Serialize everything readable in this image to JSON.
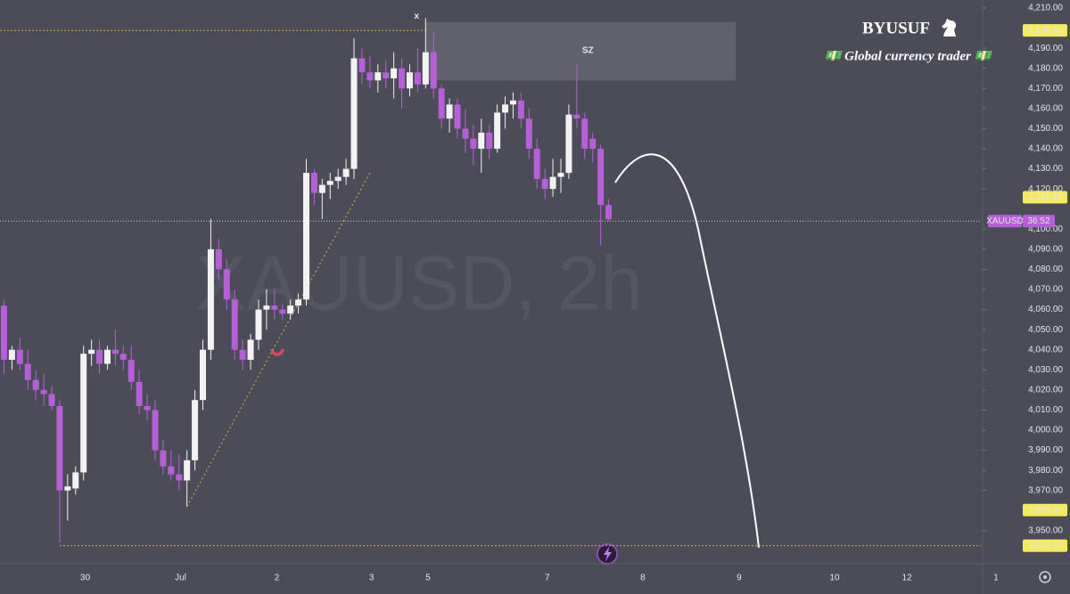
{
  "chart_data": {
    "type": "candlestick",
    "watermark": "XAUUSD, 2h",
    "brand": "BYUSUF",
    "tagline": "💵 Global currency trader 💵",
    "zone_label": "SZ",
    "marker": "x",
    "up_color": "#f2f2f2",
    "down_color": "#b65fd8",
    "open": [
      4062,
      4035,
      4040,
      4033,
      4025,
      4020,
      4018,
      4012,
      3970,
      3971,
      3979,
      4038,
      4040,
      4033,
      4040,
      4038,
      4035,
      4024,
      4012,
      4010,
      3990,
      3982,
      3978,
      3975,
      3985,
      4015,
      4040,
      4090,
      4080,
      4065,
      4040,
      4035,
      4045,
      4060,
      4062,
      4060,
      4058,
      4062,
      4065,
      4128,
      4118,
      4122,
      4124,
      4126,
      4130,
      4185,
      4178,
      4174,
      4178,
      4175,
      4180,
      4170,
      4178,
      4172,
      4188,
      4170,
      4155,
      4162,
      4150,
      4145,
      4140,
      4148,
      4140,
      4158,
      4162,
      4164,
      4155,
      4140,
      4125,
      4120,
      4126,
      4128,
      4157,
      4155,
      4145,
      4140,
      4112
    ],
    "high": [
      4065,
      4042,
      4046,
      4040,
      4030,
      4028,
      4022,
      4015,
      3978,
      3982,
      4042,
      4045,
      4045,
      4042,
      4050,
      4042,
      4042,
      4030,
      4018,
      4015,
      3995,
      3990,
      3988,
      3990,
      4020,
      4045,
      4105,
      4095,
      4085,
      4070,
      4045,
      4048,
      4065,
      4070,
      4070,
      4063,
      4065,
      4068,
      4135,
      4130,
      4125,
      4128,
      4130,
      4135,
      4195,
      4190,
      4186,
      4182,
      4184,
      4188,
      4185,
      4182,
      4190,
      4205,
      4198,
      4172,
      4165,
      4165,
      4160,
      4152,
      4155,
      4152,
      4162,
      4166,
      4168,
      4168,
      4160,
      4145,
      4130,
      4135,
      4135,
      4162,
      4182,
      4158,
      4148,
      4142,
      4115
    ],
    "low": [
      4028,
      4030,
      4030,
      4020,
      4015,
      4012,
      4010,
      3944,
      3955,
      3968,
      3975,
      4032,
      4028,
      4030,
      4032,
      4030,
      4020,
      4008,
      4005,
      3985,
      3978,
      3975,
      3970,
      3962,
      3980,
      4010,
      4035,
      4075,
      4060,
      4035,
      4030,
      4030,
      4040,
      4050,
      4055,
      4055,
      4055,
      4058,
      4062,
      4112,
      4105,
      4115,
      4120,
      4122,
      4125,
      4172,
      4170,
      4168,
      4170,
      4165,
      4160,
      4166,
      4168,
      4170,
      4165,
      4150,
      4148,
      4145,
      4138,
      4132,
      4128,
      4135,
      4138,
      4150,
      4155,
      4150,
      4135,
      4120,
      4115,
      4116,
      4118,
      4125,
      4150,
      4135,
      4133,
      4092,
      4104
    ],
    "close": [
      4035,
      4040,
      4033,
      4025,
      4020,
      4018,
      4012,
      3970,
      3972,
      3979,
      4038,
      4040,
      4033,
      4040,
      4038,
      4035,
      4024,
      4012,
      4010,
      3990,
      3982,
      3978,
      3975,
      3985,
      4015,
      4040,
      4090,
      4080,
      4065,
      4040,
      4035,
      4045,
      4060,
      4062,
      4060,
      4058,
      4062,
      4065,
      4128,
      4118,
      4122,
      4124,
      4126,
      4130,
      4185,
      4178,
      4174,
      4178,
      4175,
      4180,
      4170,
      4178,
      4172,
      4188,
      4170,
      4155,
      4162,
      4150,
      4145,
      4140,
      4148,
      4140,
      4158,
      4162,
      4164,
      4155,
      4140,
      4125,
      4120,
      4126,
      4128,
      4157,
      4155,
      4140,
      4140,
      4112,
      4105
    ],
    "xlim": [
      -0.5,
      134
    ],
    "xticks": [
      {
        "value": 10.2,
        "label": "30"
      },
      {
        "value": 22.2,
        "label": "Jul"
      },
      {
        "value": 34.3,
        "label": "2"
      },
      {
        "value": 46.2,
        "label": "3"
      },
      {
        "value": 53.3,
        "label": "5"
      },
      {
        "value": 68.3,
        "label": "7"
      },
      {
        "value": 80.3,
        "label": "8"
      },
      {
        "value": 92.4,
        "label": "9"
      },
      {
        "value": 104.4,
        "label": "10"
      },
      {
        "value": 113.5,
        "label": "12"
      },
      {
        "value": 124.7,
        "label": "1"
      }
    ],
    "ylim": [
      3934,
      4214
    ],
    "yticks": [
      {
        "value": 4210,
        "label": "4,210.00"
      },
      {
        "value": 4190,
        "label": "4,190.00"
      },
      {
        "value": 4180,
        "label": "4,180.00"
      },
      {
        "value": 4170,
        "label": "4,170.00"
      },
      {
        "value": 4160,
        "label": "4,160.00"
      },
      {
        "value": 4150,
        "label": "4,150.00"
      },
      {
        "value": 4140,
        "label": "4,140.00"
      },
      {
        "value": 4130,
        "label": "4,130.00"
      },
      {
        "value": 4120,
        "label": "4,120.00"
      },
      {
        "value": 4100,
        "label": "4,100.00"
      },
      {
        "value": 4090,
        "label": "4,090.00"
      },
      {
        "value": 4080,
        "label": "4,080.00"
      },
      {
        "value": 4070,
        "label": "4,070.00"
      },
      {
        "value": 4060,
        "label": "4,060.00"
      },
      {
        "value": 4050,
        "label": "4,050.00"
      },
      {
        "value": 4040,
        "label": "4,040.00"
      },
      {
        "value": 4030,
        "label": "4,030.00"
      },
      {
        "value": 4020,
        "label": "4,020.00"
      },
      {
        "value": 4010,
        "label": "4,010.00"
      },
      {
        "value": 4000,
        "label": "4,000.00"
      },
      {
        "value": 3990,
        "label": "3,990.00"
      },
      {
        "value": 3980,
        "label": "3,980.00"
      },
      {
        "value": 3970,
        "label": "3,970.00"
      },
      {
        "value": 3950,
        "label": "3,950.00"
      }
    ],
    "price_lines": [
      {
        "value": 4198.86,
        "label": "4,198.86"
      },
      {
        "value": 4115.88,
        "label": "4,115.88"
      },
      {
        "value": 3960.24,
        "label": "3,960.24"
      },
      {
        "value": 3942.51,
        "label": "3,942.51"
      }
    ],
    "current_price": {
      "value": 4104,
      "symbol": "XAUUSD",
      "countdown": "36:52"
    },
    "zone": {
      "x": [
        53,
        92
      ],
      "y": [
        4174,
        4203
      ]
    },
    "trendline": {
      "x": [
        23,
        46
      ],
      "y": [
        3962,
        4128
      ]
    }
  }
}
